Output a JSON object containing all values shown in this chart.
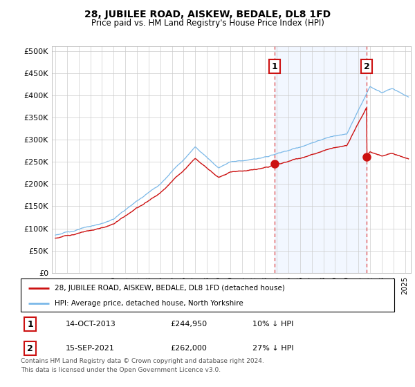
{
  "title": "28, JUBILEE ROAD, AISKEW, BEDALE, DL8 1FD",
  "subtitle": "Price paid vs. HM Land Registry's House Price Index (HPI)",
  "ylabel_ticks": [
    "£0",
    "£50K",
    "£100K",
    "£150K",
    "£200K",
    "£250K",
    "£300K",
    "£350K",
    "£400K",
    "£450K",
    "£500K"
  ],
  "ytick_values": [
    0,
    50000,
    100000,
    150000,
    200000,
    250000,
    300000,
    350000,
    400000,
    450000,
    500000
  ],
  "ylim": [
    0,
    510000
  ],
  "xlim_start": 1994.7,
  "xlim_end": 2025.5,
  "hpi_color": "#7ab8e8",
  "hpi_fill_color": "#daeaf7",
  "price_color": "#cc1111",
  "purchase1_date": 2013.79,
  "purchase1_price": 244950,
  "purchase1_label": "1",
  "purchase2_date": 2021.71,
  "purchase2_price": 262000,
  "purchase2_label": "2",
  "vline_color": "#dd4444",
  "annotation_box_color": "#cc1111",
  "legend_line1": "28, JUBILEE ROAD, AISKEW, BEDALE, DL8 1FD (detached house)",
  "legend_line2": "HPI: Average price, detached house, North Yorkshire",
  "table_row1": [
    "1",
    "14-OCT-2013",
    "£244,950",
    "10% ↓ HPI"
  ],
  "table_row2": [
    "2",
    "15-SEP-2021",
    "£262,000",
    "27% ↓ HPI"
  ],
  "footnote1": "Contains HM Land Registry data © Crown copyright and database right 2024.",
  "footnote2": "This data is licensed under the Open Government Licence v3.0.",
  "background_color": "#ffffff",
  "grid_color": "#cccccc"
}
